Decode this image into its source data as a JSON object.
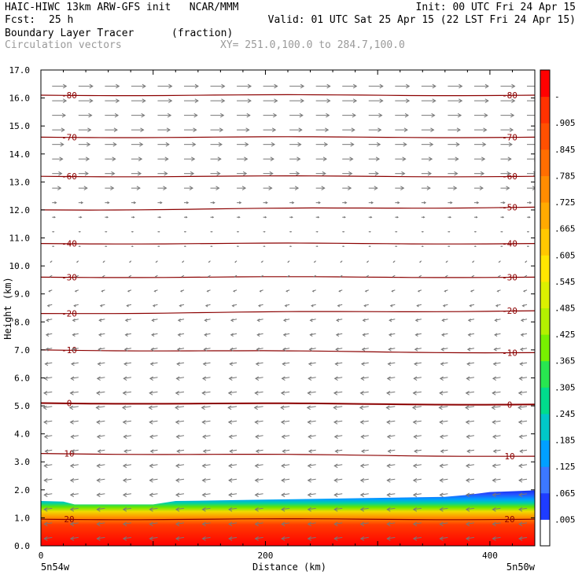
{
  "header": {
    "title_left": "HAIC-HIWC 13km ARW-GFS init   NCAR/MMM",
    "init": "Init: 00 UTC Fri 24 Apr 15",
    "fcst_label": "Fcst:",
    "fcst_value": "25 h",
    "valid": "Valid: 01 UTC Sat 25 Apr 15 (22 LST Fri 24 Apr 15)",
    "field_name": "Boundary Layer Tracer",
    "field_units": "(fraction)",
    "vector_label": "Circulation vectors",
    "xy_label": "XY= 251.0,100.0 to 284.7,100.0"
  },
  "chart_data": {
    "type": "heatmap",
    "xlabel": "Distance (km)",
    "ylabel": "Height (km)",
    "xlim": [
      0,
      440
    ],
    "ylim": [
      0,
      17
    ],
    "x_ticks": [
      "0",
      "200",
      "400"
    ],
    "x_tick_values": [
      0,
      200,
      400
    ],
    "y_ticks": [
      "0.0",
      "1.0",
      "2.0",
      "3.0",
      "4.0",
      "5.0",
      "6.0",
      "7.0",
      "8.0",
      "9.0",
      "10.0",
      "11.0",
      "12.0",
      "13.0",
      "14.0",
      "15.0",
      "16.0",
      "17.0"
    ],
    "endpoints": {
      "left": "5n54w",
      "right": "5n50w"
    },
    "tracer_top_km": [
      {
        "x": 0,
        "y": 1.6
      },
      {
        "x": 20,
        "y": 1.58
      },
      {
        "x": 30,
        "y": 1.48
      },
      {
        "x": 100,
        "y": 1.48
      },
      {
        "x": 120,
        "y": 1.6
      },
      {
        "x": 200,
        "y": 1.65
      },
      {
        "x": 360,
        "y": 1.75
      },
      {
        "x": 380,
        "y": 1.82
      },
      {
        "x": 400,
        "y": 1.92
      },
      {
        "x": 440,
        "y": 1.98
      }
    ],
    "temperature_contours": [
      {
        "label": "20",
        "y_left": 0.95,
        "y_right": 0.95,
        "label_left": true,
        "label_right": true
      },
      {
        "label": "10",
        "y_left": 3.3,
        "y_right": 3.2,
        "label_left": true,
        "label_right": true
      },
      {
        "label": "0",
        "y_left": 5.1,
        "y_right": 5.05,
        "label_left": true,
        "label_right": true
      },
      {
        "label": "-10",
        "y_left": 7.0,
        "y_right": 6.9,
        "label_left": true,
        "label_right": true
      },
      {
        "label": "-20",
        "y_left": 8.3,
        "y_right": 8.4,
        "label_left": true,
        "label_right": true
      },
      {
        "label": "-30",
        "y_left": 9.6,
        "y_right": 9.6,
        "label_left": true,
        "label_right": true
      },
      {
        "label": "-40",
        "y_left": 10.8,
        "y_right": 10.8,
        "label_left": true,
        "label_right": true
      },
      {
        "label": "-50",
        "y_left": 12.0,
        "y_right": 12.1,
        "label_left": false,
        "label_right": true
      },
      {
        "label": "-60",
        "y_left": 13.2,
        "y_right": 13.2,
        "label_left": true,
        "label_right": true
      },
      {
        "label": "-70",
        "y_left": 14.6,
        "y_right": 14.6,
        "label_left": true,
        "label_right": true
      },
      {
        "label": "-80",
        "y_left": 16.1,
        "y_right": 16.1,
        "label_left": true,
        "label_right": true
      }
    ],
    "colorbar": {
      "colors": [
        "#ffffff",
        "#1e3cff",
        "#3c78ff",
        "#00a0ff",
        "#00c8c8",
        "#00dc8c",
        "#28e650",
        "#78f000",
        "#b4f000",
        "#dcf000",
        "#ffe600",
        "#ffc800",
        "#ffaa00",
        "#ff8c00",
        "#ff6e00",
        "#ff5000",
        "#ff3200",
        "#ff0000"
      ],
      "labels": [
        ".005",
        ".065",
        ".125",
        ".185",
        ".245",
        ".305",
        ".365",
        ".425",
        ".485",
        ".545",
        ".605",
        ".665",
        ".725",
        ".785",
        ".845",
        ".905",
        "-"
      ]
    },
    "wind_vectors": {
      "upper_direction": "eastward",
      "lower_direction": "westward",
      "reversal_height_km": 10.5
    }
  }
}
